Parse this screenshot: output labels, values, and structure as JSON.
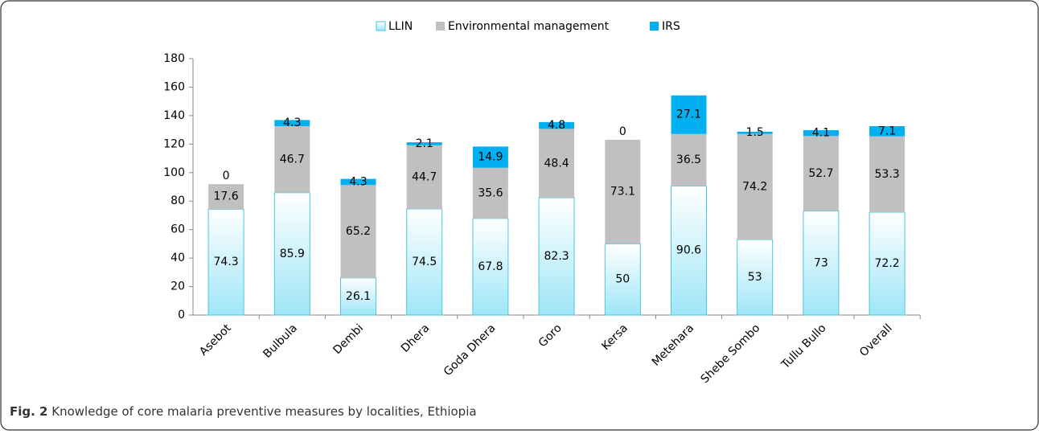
{
  "chart_data": {
    "type": "stacked_bar",
    "categories": [
      "Asebot",
      "Bulbula",
      "Dembi",
      "Dhera",
      "Goda Dhera",
      "Goro",
      "Kersa",
      "Metehara",
      "Shebe Sombo",
      "Tullu Bullo",
      "Overall"
    ],
    "series": [
      {
        "name": "LLIN",
        "color": "#b0ecf8",
        "values": [
          74.3,
          85.9,
          26.1,
          74.5,
          67.8,
          82.3,
          50,
          90.6,
          53,
          73,
          72.2
        ]
      },
      {
        "name": "Environmental management",
        "color": "#c0c0c0",
        "values": [
          17.6,
          46.7,
          65.2,
          44.7,
          35.6,
          48.4,
          73.1,
          36.5,
          74.2,
          52.7,
          53.3
        ]
      },
      {
        "name": "IRS",
        "color": "#00b0f0",
        "values": [
          0,
          4.3,
          4.3,
          2.1,
          14.9,
          4.8,
          0,
          27.1,
          1.5,
          4.1,
          7.1
        ]
      }
    ],
    "ylim": [
      0,
      180
    ],
    "yticks": [
      0,
      20,
      40,
      60,
      80,
      100,
      120,
      140,
      160,
      180
    ],
    "legend": "top",
    "caption_label": "Fig. 2",
    "caption": "Knowledge of core malaria preventive measures by localities, Ethiopia"
  }
}
